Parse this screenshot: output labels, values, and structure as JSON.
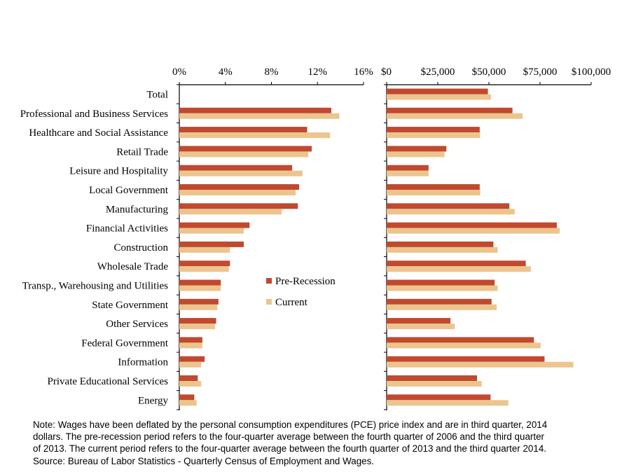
{
  "chart_data": [
    {
      "type": "bar",
      "orientation": "horizontal",
      "title": "",
      "xlabel": "",
      "ylabel": "",
      "xlim": [
        0,
        16
      ],
      "tick_values": [
        0,
        4,
        8,
        12,
        16
      ],
      "tick_labels": [
        "0%",
        "4%",
        "8%",
        "12%",
        "16%"
      ],
      "categories": [
        "Total",
        "Professional and Business Services",
        "Healthcare and Social Assistance",
        "Retail Trade",
        "Leisure and Hospitality",
        "Local Government",
        "Manufacturing",
        "Financial Activities",
        "Construction",
        "Wholesale Trade",
        "Transp., Warehousing and Utilities",
        "State Government",
        "Other Services",
        "Federal Government",
        "Information",
        "Private Educational Services",
        "Energy"
      ],
      "series": [
        {
          "name": "Pre-Recession",
          "color": "#c0492e",
          "values": [
            0,
            13.2,
            11.1,
            11.5,
            9.8,
            10.4,
            10.3,
            6.1,
            5.6,
            4.4,
            3.6,
            3.4,
            3.2,
            2.0,
            2.2,
            1.6,
            1.3
          ]
        },
        {
          "name": "Current",
          "color": "#ecc58e",
          "values": [
            0,
            13.9,
            13.1,
            11.2,
            10.7,
            10.1,
            8.9,
            5.6,
            4.4,
            4.3,
            3.6,
            3.3,
            3.1,
            2.0,
            1.9,
            1.9,
            1.5
          ]
        }
      ],
      "legend": {
        "position": "bottom-right inside",
        "items": [
          "Pre-Recession",
          "Current"
        ]
      },
      "grid": false
    },
    {
      "type": "bar",
      "orientation": "horizontal",
      "title": "",
      "xlabel": "",
      "ylabel": "",
      "xlim": [
        0,
        100000
      ],
      "tick_values": [
        0,
        25000,
        50000,
        75000,
        100000
      ],
      "tick_labels": [
        "$0",
        "$25,000",
        "$50,000",
        "$75,000",
        "$100,000"
      ],
      "categories": [
        "Total",
        "Professional and Business Services",
        "Healthcare and Social Assistance",
        "Retail Trade",
        "Leisure and Hospitality",
        "Local Government",
        "Manufacturing",
        "Financial Activities",
        "Construction",
        "Wholesale Trade",
        "Transp., Warehousing and Utilities",
        "State Government",
        "Other Services",
        "Federal Government",
        "Information",
        "Private Educational Services",
        "Energy"
      ],
      "series": [
        {
          "name": "Pre-Recession",
          "color": "#c0492e",
          "values": [
            49500,
            61500,
            45500,
            29200,
            20500,
            45500,
            60000,
            83200,
            52200,
            68000,
            52800,
            51300,
            31200,
            72000,
            77200,
            44200,
            50800
          ]
        },
        {
          "name": "Current",
          "color": "#ecc58e",
          "values": [
            51000,
            66500,
            45700,
            28300,
            20500,
            45800,
            62600,
            84600,
            54300,
            70500,
            54300,
            53800,
            33300,
            75300,
            91300,
            46500,
            59500
          ]
        }
      ],
      "grid": false
    }
  ],
  "note": {
    "lines": [
      "Note: Wages have been deflated by the personal consumption expenditures (PCE) price index and are in third quarter, 2014",
      "dollars. The pre-recession period refers to the four-quarter average between the fourth quarter of 2006 and the third quarter",
      "of 2013. The current period refers to the four-quarter average between the fourth quarter of 2013 and the third quarter 2014.",
      "Source: Bureau of Labor Statistics - Quarterly Census of Employment and Wages."
    ]
  }
}
